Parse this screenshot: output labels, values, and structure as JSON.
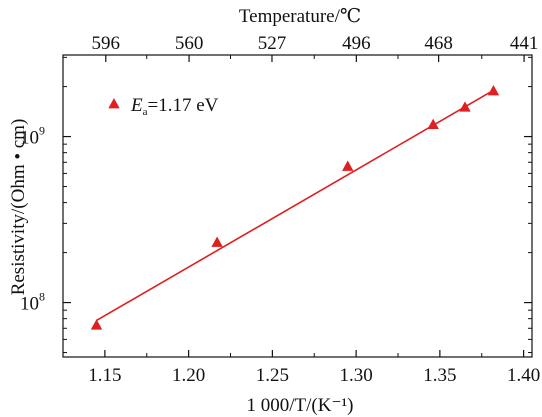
{
  "chart_data": {
    "type": "scatter",
    "title": "",
    "xlabel": "1 000/T/(K⁻¹)",
    "ylabel": "Resistivity/(Ohm • cm)",
    "top_axis_label": "Temperature/℃",
    "xlim": [
      1.125,
      1.405
    ],
    "ylim": [
      47000000,
      3100000000
    ],
    "yscale": "log",
    "x_ticks": [
      1.15,
      1.2,
      1.25,
      1.3,
      1.35,
      1.4
    ],
    "x_tick_labels": [
      "1.15",
      "1.20",
      "1.25",
      "1.30",
      "1.35",
      "1.40"
    ],
    "top_ticks": [
      596,
      560,
      527,
      496,
      468,
      441
    ],
    "top_tick_labels": [
      "596",
      "560",
      "527",
      "496",
      "468",
      "441"
    ],
    "y_ticks": [
      100000000,
      1000000000
    ],
    "y_tick_labels": [
      {
        "base": "10",
        "exp": "8"
      },
      {
        "base": "10",
        "exp": "9"
      }
    ],
    "grid": false,
    "legend_position": "top-left",
    "legend_label": {
      "symbol": "E",
      "subscript": "a",
      "text": "=1.17 eV"
    },
    "series": [
      {
        "name": "Ea=1.17 eV",
        "marker": "triangle",
        "color": "#e02020",
        "x": [
          1.145,
          1.217,
          1.295,
          1.346,
          1.365,
          1.382
        ],
        "y": [
          73000000,
          230000000,
          660000000,
          1180000000,
          1500000000,
          1880000000
        ]
      }
    ],
    "fit": {
      "x": [
        1.145,
        1.382
      ],
      "y": [
        78000000,
        1900000000
      ],
      "color": "#e02020"
    }
  }
}
